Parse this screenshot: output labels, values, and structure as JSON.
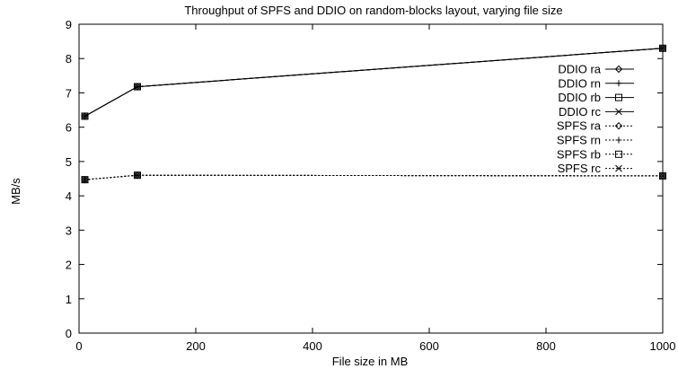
{
  "chart_data": {
    "type": "line",
    "title": "Throughput of SPFS and DDIO on random-blocks layout, varying file size",
    "xlabel": "File size in MB",
    "ylabel": "MB/s",
    "xlim": [
      0,
      1000
    ],
    "ylim": [
      0,
      9
    ],
    "xticks": [
      0,
      200,
      400,
      600,
      800,
      1000
    ],
    "yticks": [
      0,
      1,
      2,
      3,
      4,
      5,
      6,
      7,
      8,
      9
    ],
    "grid": false,
    "legend_position": "top-right",
    "x": [
      10,
      100,
      1000
    ],
    "series": [
      {
        "name": "DDIO ra",
        "marker": "diamond",
        "dash": "solid",
        "values": [
          6.32,
          7.18,
          8.3
        ]
      },
      {
        "name": "DDIO rn",
        "marker": "plus",
        "dash": "solid",
        "values": [
          6.32,
          7.18,
          8.3
        ]
      },
      {
        "name": "DDIO rb",
        "marker": "square",
        "dash": "solid",
        "values": [
          6.32,
          7.18,
          8.3
        ]
      },
      {
        "name": "DDIO rc",
        "marker": "cross",
        "dash": "solid",
        "values": [
          6.32,
          7.18,
          8.3
        ]
      },
      {
        "name": "SPFS ra",
        "marker": "diamond",
        "dash": "dotted",
        "values": [
          4.47,
          4.6,
          4.58
        ]
      },
      {
        "name": "SPFS rn",
        "marker": "plus",
        "dash": "dotted",
        "values": [
          4.47,
          4.6,
          4.58
        ]
      },
      {
        "name": "SPFS rb",
        "marker": "square",
        "dash": "dotted",
        "values": [
          4.47,
          4.6,
          4.58
        ]
      },
      {
        "name": "SPFS rc",
        "marker": "cross",
        "dash": "dotted",
        "values": [
          4.47,
          4.6,
          4.58
        ]
      }
    ]
  }
}
